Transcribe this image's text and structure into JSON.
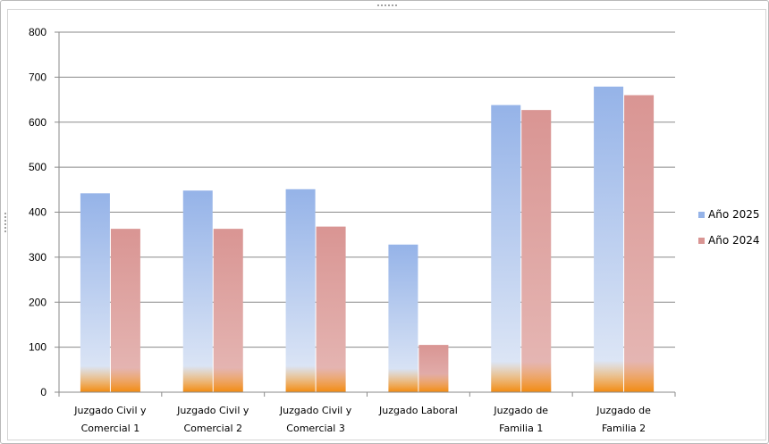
{
  "chart_data": {
    "type": "bar",
    "title": "",
    "xlabel": "",
    "ylabel": "",
    "ylim": [
      0,
      800
    ],
    "yticks": [
      0,
      100,
      200,
      300,
      400,
      500,
      600,
      700,
      800
    ],
    "grid": true,
    "legend_position": "right",
    "categories": [
      [
        "Juzgado Civil y",
        "Comercial 1"
      ],
      [
        "Juzgado Civil y",
        "Comercial 2"
      ],
      [
        "Juzgado Civil y",
        "Comercial 3"
      ],
      [
        "Juzgado  Laboral"
      ],
      [
        "Juzgado  de",
        "Familia 1"
      ],
      [
        "Juzgado  de",
        "Familia 2"
      ]
    ],
    "series": [
      {
        "name": "Año 2025",
        "color": "#95b3e8",
        "values": [
          442,
          448,
          451,
          328,
          638,
          679
        ]
      },
      {
        "name": "Año 2024",
        "color": "#d99593",
        "values": [
          363,
          363,
          368,
          105,
          627,
          660
        ]
      }
    ]
  }
}
